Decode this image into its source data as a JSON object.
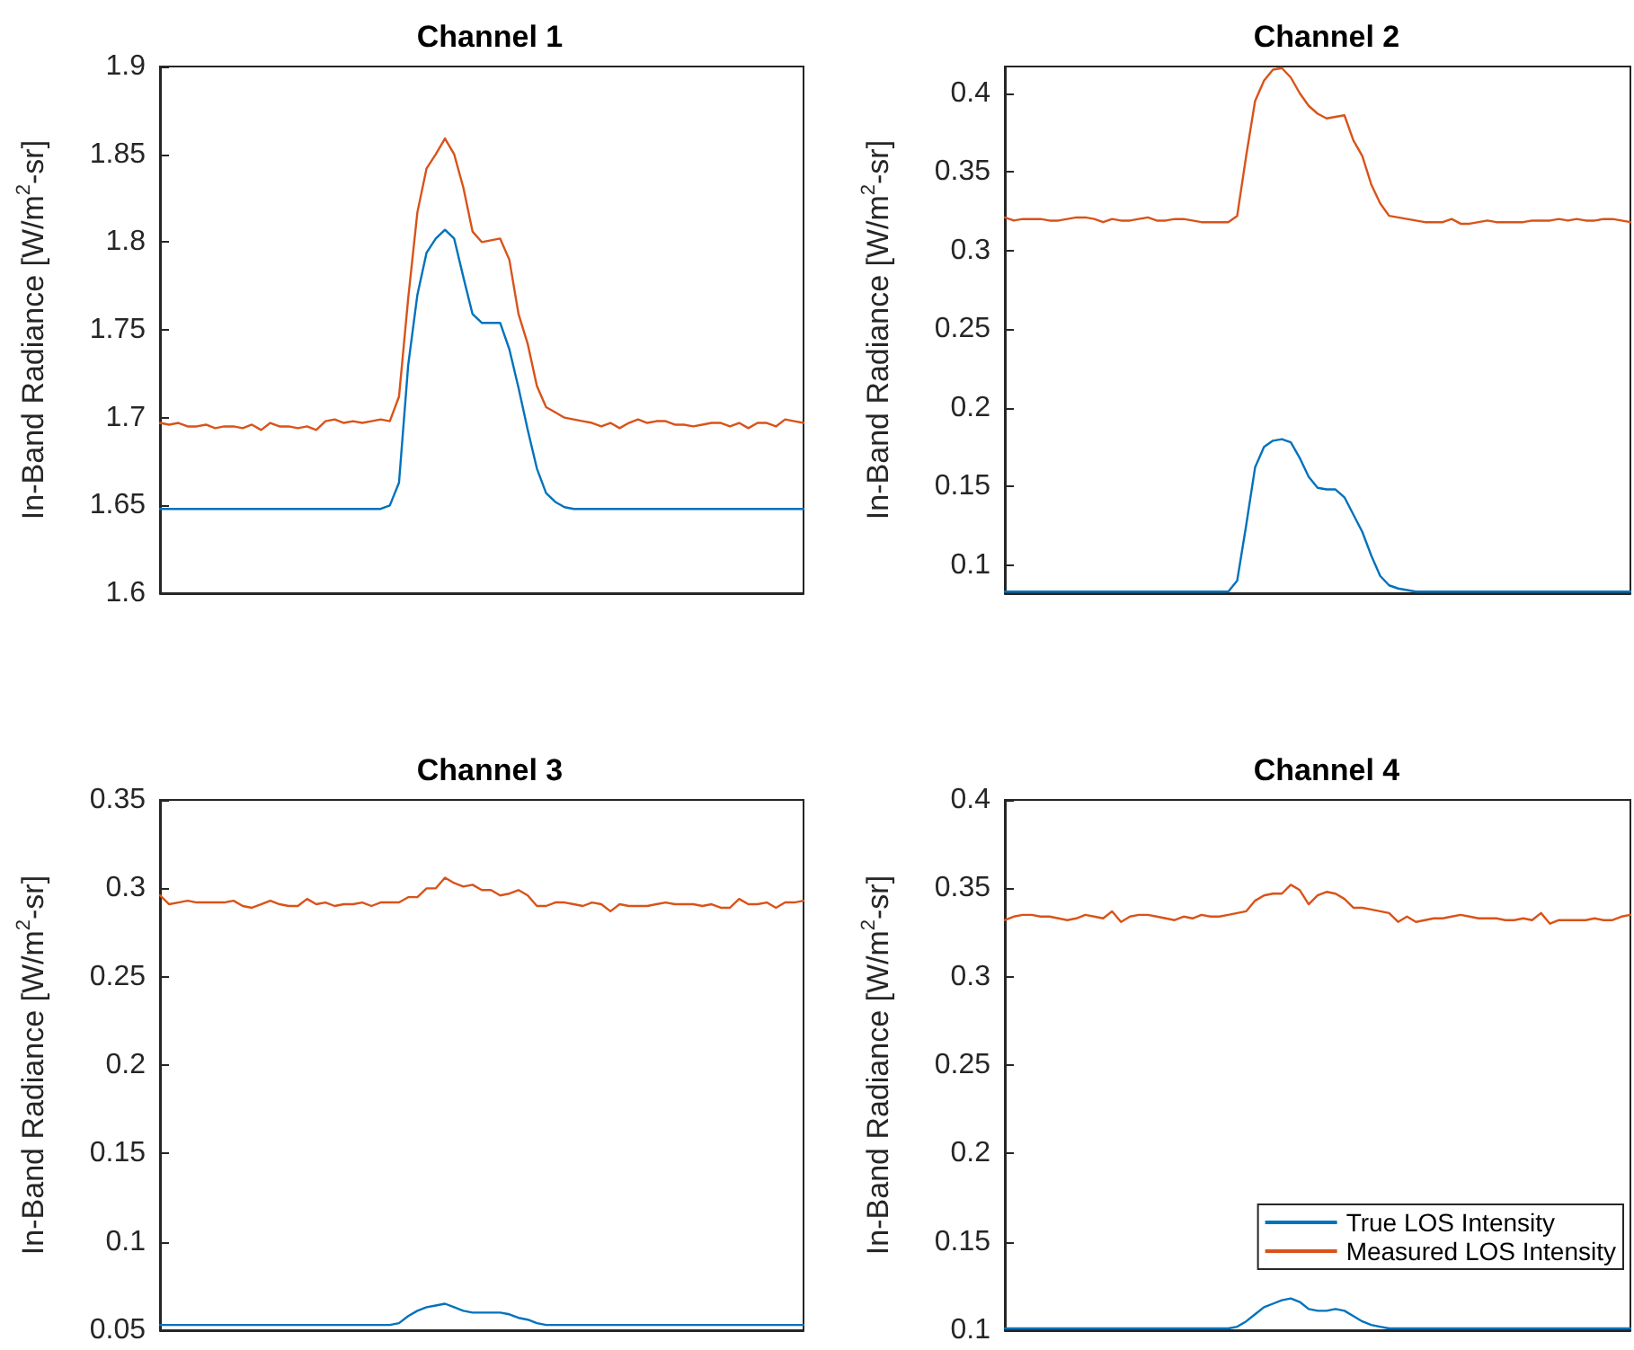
{
  "chart_data": [
    {
      "type": "line",
      "title": "Channel 1",
      "ylabel": "In-Band Radiance [W/m$^{2}$-sr]",
      "tick_labels": "y",
      "line_style": "solid",
      "ylim": [
        1.6,
        1.9
      ],
      "yticks": [
        1.6,
        1.65,
        1.7,
        1.75,
        1.8,
        1.85,
        1.9
      ],
      "categories": [
        null,
        null,
        null,
        null,
        null,
        null,
        null,
        null,
        null,
        null,
        null,
        null,
        null,
        null,
        null,
        null,
        null,
        null,
        null,
        null,
        null,
        null,
        null,
        null,
        null,
        null,
        null,
        null,
        null,
        null,
        null,
        null,
        null,
        null,
        null,
        null,
        null,
        null,
        null,
        null,
        null,
        null,
        null,
        null,
        null,
        null,
        null,
        null,
        null,
        null,
        null,
        null,
        null,
        null,
        null,
        null,
        null,
        null,
        null,
        null,
        null,
        null,
        null,
        null,
        null,
        null,
        null,
        null,
        null,
        null,
        null
      ],
      "series": [
        {
          "color": "#0072bd",
          "values": [
            1.648,
            1.648,
            1.648,
            1.648,
            1.648,
            1.648,
            1.648,
            1.648,
            1.648,
            1.648,
            1.648,
            1.648,
            1.648,
            1.648,
            1.648,
            1.648,
            1.648,
            1.648,
            1.648,
            1.648,
            1.648,
            1.648,
            1.648,
            1.648,
            1.648,
            1.65,
            1.663,
            1.73,
            1.77,
            1.794,
            1.802,
            1.807,
            1.802,
            1.78,
            1.759,
            1.754,
            1.754,
            1.754,
            1.739,
            1.717,
            1.693,
            1.671,
            1.657,
            1.652,
            1.649,
            1.648,
            1.648,
            1.648,
            1.648,
            1.648,
            1.648,
            1.648,
            1.648,
            1.648,
            1.648,
            1.648,
            1.648,
            1.648,
            1.648,
            1.648,
            1.648,
            1.648,
            1.648,
            1.648,
            1.648,
            1.648,
            1.648,
            1.648,
            1.648,
            1.648,
            1.648
          ]
        },
        {
          "color": "#d95319",
          "values": [
            1.697,
            1.696,
            1.697,
            1.695,
            1.695,
            1.696,
            1.694,
            1.695,
            1.695,
            1.694,
            1.696,
            1.693,
            1.697,
            1.695,
            1.695,
            1.694,
            1.695,
            1.693,
            1.698,
            1.699,
            1.697,
            1.698,
            1.697,
            1.698,
            1.699,
            1.698,
            1.712,
            1.768,
            1.817,
            1.842,
            1.85,
            1.859,
            1.85,
            1.831,
            1.806,
            1.8,
            1.801,
            1.802,
            1.79,
            1.759,
            1.742,
            1.718,
            1.706,
            1.703,
            1.7,
            1.699,
            1.698,
            1.697,
            1.695,
            1.697,
            1.694,
            1.697,
            1.699,
            1.697,
            1.698,
            1.698,
            1.696,
            1.696,
            1.695,
            1.696,
            1.697,
            1.697,
            1.695,
            1.697,
            1.694,
            1.697,
            1.697,
            1.695,
            1.699,
            1.698,
            1.697
          ]
        }
      ]
    },
    {
      "type": "line",
      "title": "Channel 2",
      "ylabel": "In-Band Radiance [W/m$^{2}$-sr]",
      "tick_labels": "y",
      "line_style": "solid",
      "ylim": [
        0.082,
        0.417
      ],
      "yticks": [
        0.1,
        0.15,
        0.2,
        0.25,
        0.3,
        0.35,
        0.4
      ],
      "categories": [
        null,
        null,
        null,
        null,
        null,
        null,
        null,
        null,
        null,
        null,
        null,
        null,
        null,
        null,
        null,
        null,
        null,
        null,
        null,
        null,
        null,
        null,
        null,
        null,
        null,
        null,
        null,
        null,
        null,
        null,
        null,
        null,
        null,
        null,
        null,
        null,
        null,
        null,
        null,
        null,
        null,
        null,
        null,
        null,
        null,
        null,
        null,
        null,
        null,
        null,
        null,
        null,
        null,
        null,
        null,
        null,
        null,
        null,
        null,
        null,
        null,
        null,
        null,
        null,
        null,
        null,
        null,
        null,
        null,
        null,
        null
      ],
      "series": [
        {
          "color": "#0072bd",
          "values": [
            0.083,
            0.083,
            0.083,
            0.083,
            0.083,
            0.083,
            0.083,
            0.083,
            0.083,
            0.083,
            0.083,
            0.083,
            0.083,
            0.083,
            0.083,
            0.083,
            0.083,
            0.083,
            0.083,
            0.083,
            0.083,
            0.083,
            0.083,
            0.083,
            0.083,
            0.083,
            0.09,
            0.125,
            0.162,
            0.175,
            0.179,
            0.18,
            0.178,
            0.168,
            0.156,
            0.149,
            0.148,
            0.148,
            0.143,
            0.132,
            0.121,
            0.106,
            0.093,
            0.087,
            0.085,
            0.084,
            0.083,
            0.083,
            0.083,
            0.083,
            0.083,
            0.083,
            0.083,
            0.083,
            0.083,
            0.083,
            0.083,
            0.083,
            0.083,
            0.083,
            0.083,
            0.083,
            0.083,
            0.083,
            0.083,
            0.083,
            0.083,
            0.083,
            0.083,
            0.083,
            0.083
          ]
        },
        {
          "color": "#d95319",
          "values": [
            0.321,
            0.319,
            0.32,
            0.32,
            0.32,
            0.319,
            0.319,
            0.32,
            0.321,
            0.321,
            0.32,
            0.318,
            0.32,
            0.319,
            0.319,
            0.32,
            0.321,
            0.319,
            0.319,
            0.32,
            0.32,
            0.319,
            0.318,
            0.318,
            0.318,
            0.318,
            0.322,
            0.36,
            0.395,
            0.408,
            0.415,
            0.416,
            0.41,
            0.4,
            0.392,
            0.387,
            0.384,
            0.385,
            0.386,
            0.37,
            0.36,
            0.342,
            0.33,
            0.322,
            0.321,
            0.32,
            0.319,
            0.318,
            0.318,
            0.318,
            0.32,
            0.317,
            0.317,
            0.318,
            0.319,
            0.318,
            0.318,
            0.318,
            0.318,
            0.319,
            0.319,
            0.319,
            0.32,
            0.319,
            0.32,
            0.319,
            0.319,
            0.32,
            0.32,
            0.319,
            0.318
          ]
        }
      ]
    },
    {
      "type": "line",
      "title": "Channel 3",
      "ylabel": "In-Band Radiance [W/m$^{2}$-sr]",
      "tick_labels": "y",
      "line_style": "solid",
      "ylim": [
        0.05,
        0.35
      ],
      "yticks": [
        0.05,
        0.1,
        0.15,
        0.2,
        0.25,
        0.3,
        0.35
      ],
      "categories": [
        null,
        null,
        null,
        null,
        null,
        null,
        null,
        null,
        null,
        null,
        null,
        null,
        null,
        null,
        null,
        null,
        null,
        null,
        null,
        null,
        null,
        null,
        null,
        null,
        null,
        null,
        null,
        null,
        null,
        null,
        null,
        null,
        null,
        null,
        null,
        null,
        null,
        null,
        null,
        null,
        null,
        null,
        null,
        null,
        null,
        null,
        null,
        null,
        null,
        null,
        null,
        null,
        null,
        null,
        null,
        null,
        null,
        null,
        null,
        null,
        null,
        null,
        null,
        null,
        null,
        null,
        null,
        null,
        null,
        null,
        null
      ],
      "series": [
        {
          "color": "#0072bd",
          "values": [
            0.053,
            0.053,
            0.053,
            0.053,
            0.053,
            0.053,
            0.053,
            0.053,
            0.053,
            0.053,
            0.053,
            0.053,
            0.053,
            0.053,
            0.053,
            0.053,
            0.053,
            0.053,
            0.053,
            0.053,
            0.053,
            0.053,
            0.053,
            0.053,
            0.053,
            0.053,
            0.054,
            0.058,
            0.061,
            0.063,
            0.064,
            0.065,
            0.063,
            0.061,
            0.06,
            0.06,
            0.06,
            0.06,
            0.059,
            0.057,
            0.056,
            0.054,
            0.053,
            0.053,
            0.053,
            0.053,
            0.053,
            0.053,
            0.053,
            0.053,
            0.053,
            0.053,
            0.053,
            0.053,
            0.053,
            0.053,
            0.053,
            0.053,
            0.053,
            0.053,
            0.053,
            0.053,
            0.053,
            0.053,
            0.053,
            0.053,
            0.053,
            0.053,
            0.053,
            0.053,
            0.053
          ]
        },
        {
          "color": "#d95319",
          "values": [
            0.296,
            0.291,
            0.292,
            0.293,
            0.292,
            0.292,
            0.292,
            0.292,
            0.293,
            0.29,
            0.289,
            0.291,
            0.293,
            0.291,
            0.29,
            0.29,
            0.294,
            0.291,
            0.292,
            0.29,
            0.291,
            0.291,
            0.292,
            0.29,
            0.292,
            0.292,
            0.292,
            0.295,
            0.295,
            0.3,
            0.3,
            0.306,
            0.303,
            0.301,
            0.302,
            0.299,
            0.299,
            0.296,
            0.297,
            0.299,
            0.296,
            0.29,
            0.29,
            0.292,
            0.292,
            0.291,
            0.29,
            0.292,
            0.291,
            0.287,
            0.291,
            0.29,
            0.29,
            0.29,
            0.291,
            0.292,
            0.291,
            0.291,
            0.291,
            0.29,
            0.291,
            0.289,
            0.289,
            0.294,
            0.291,
            0.291,
            0.292,
            0.289,
            0.292,
            0.292,
            0.293
          ]
        }
      ]
    },
    {
      "type": "line",
      "title": "Channel 4",
      "ylabel": "In-Band Radiance [W/m$^{2}$-sr]",
      "tick_labels": "y",
      "line_style": "solid",
      "legend": "bottom right",
      "ylim": [
        0.1,
        0.4
      ],
      "yticks": [
        0.1,
        0.15,
        0.2,
        0.25,
        0.3,
        0.35,
        0.4
      ],
      "categories": [
        null,
        null,
        null,
        null,
        null,
        null,
        null,
        null,
        null,
        null,
        null,
        null,
        null,
        null,
        null,
        null,
        null,
        null,
        null,
        null,
        null,
        null,
        null,
        null,
        null,
        null,
        null,
        null,
        null,
        null,
        null,
        null,
        null,
        null,
        null,
        null,
        null,
        null,
        null,
        null,
        null,
        null,
        null,
        null,
        null,
        null,
        null,
        null,
        null,
        null,
        null,
        null,
        null,
        null,
        null,
        null,
        null,
        null,
        null,
        null,
        null,
        null,
        null,
        null,
        null,
        null,
        null,
        null,
        null,
        null,
        null
      ],
      "series": [
        {
          "name": "True LOS Intensity",
          "color": "#0072bd",
          "values": [
            0.101,
            0.101,
            0.101,
            0.101,
            0.101,
            0.101,
            0.101,
            0.101,
            0.101,
            0.101,
            0.101,
            0.101,
            0.101,
            0.101,
            0.101,
            0.101,
            0.101,
            0.101,
            0.101,
            0.101,
            0.101,
            0.101,
            0.101,
            0.101,
            0.101,
            0.101,
            0.102,
            0.105,
            0.109,
            0.113,
            0.115,
            0.117,
            0.118,
            0.116,
            0.112,
            0.111,
            0.111,
            0.112,
            0.111,
            0.108,
            0.105,
            0.103,
            0.102,
            0.101,
            0.101,
            0.101,
            0.101,
            0.101,
            0.101,
            0.101,
            0.101,
            0.101,
            0.101,
            0.101,
            0.101,
            0.101,
            0.101,
            0.101,
            0.101,
            0.101,
            0.101,
            0.101,
            0.101,
            0.101,
            0.101,
            0.101,
            0.101,
            0.101,
            0.101,
            0.101,
            0.101
          ]
        },
        {
          "name": "Measured LOS Intensity",
          "color": "#d95319",
          "values": [
            0.332,
            0.334,
            0.335,
            0.335,
            0.334,
            0.334,
            0.333,
            0.332,
            0.333,
            0.335,
            0.334,
            0.333,
            0.337,
            0.331,
            0.334,
            0.335,
            0.335,
            0.334,
            0.333,
            0.332,
            0.334,
            0.333,
            0.335,
            0.334,
            0.334,
            0.335,
            0.336,
            0.337,
            0.343,
            0.346,
            0.347,
            0.347,
            0.352,
            0.349,
            0.341,
            0.346,
            0.348,
            0.347,
            0.344,
            0.339,
            0.339,
            0.338,
            0.337,
            0.336,
            0.331,
            0.334,
            0.331,
            0.332,
            0.333,
            0.333,
            0.334,
            0.335,
            0.334,
            0.333,
            0.333,
            0.333,
            0.332,
            0.332,
            0.333,
            0.332,
            0.336,
            0.33,
            0.332,
            0.332,
            0.332,
            0.332,
            0.333,
            0.332,
            0.332,
            0.334,
            0.335
          ]
        }
      ]
    }
  ]
}
